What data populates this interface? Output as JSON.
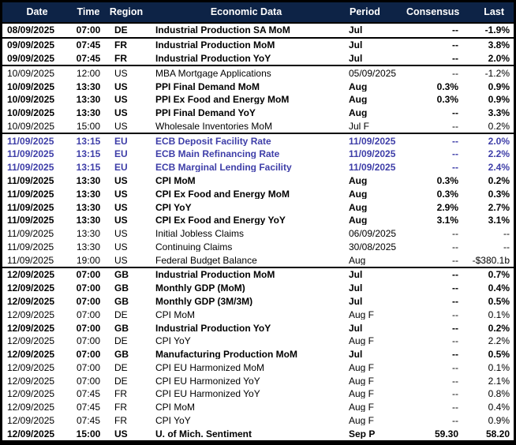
{
  "colors": {
    "header_bg": "#0d2346",
    "header_text": "#ffffff",
    "ecb_accent": "#3e3ea8",
    "border": "#000000",
    "row_bg": "#ffffff"
  },
  "columns": [
    {
      "key": "date",
      "label": "Date"
    },
    {
      "key": "time",
      "label": "Time"
    },
    {
      "key": "region",
      "label": "Region"
    },
    {
      "key": "event",
      "label": "Economic Data"
    },
    {
      "key": "period",
      "label": "Period"
    },
    {
      "key": "consensus",
      "label": "Consensus"
    },
    {
      "key": "last",
      "label": "Last"
    }
  ],
  "rows": [
    {
      "date": "08/09/2025",
      "time": "07:00",
      "region": "DE",
      "event": "Industrial Production SA MoM",
      "period": "Jul",
      "consensus": "--",
      "last": "-1.9%",
      "style": "bold",
      "group_end": true
    },
    {
      "date": "09/09/2025",
      "time": "07:45",
      "region": "FR",
      "event": "Industrial Production MoM",
      "period": "Jul",
      "consensus": "--",
      "last": "3.8%",
      "style": "bold",
      "group_end": false
    },
    {
      "date": "09/09/2025",
      "time": "07:45",
      "region": "FR",
      "event": "Industrial Production YoY",
      "period": "Jul",
      "consensus": "--",
      "last": "2.0%",
      "style": "bold",
      "group_end": true
    },
    {
      "date": "10/09/2025",
      "time": "12:00",
      "region": "US",
      "event": "MBA Mortgage Applications",
      "period": "05/09/2025",
      "consensus": "--",
      "last": "-1.2%",
      "style": "normal",
      "group_end": false
    },
    {
      "date": "10/09/2025",
      "time": "13:30",
      "region": "US",
      "event": "PPI Final Demand MoM",
      "period": "Aug",
      "consensus": "0.3%",
      "last": "0.9%",
      "style": "bold",
      "group_end": false
    },
    {
      "date": "10/09/2025",
      "time": "13:30",
      "region": "US",
      "event": "PPI Ex Food and Energy MoM",
      "period": "Aug",
      "consensus": "0.3%",
      "last": "0.9%",
      "style": "bold",
      "group_end": false
    },
    {
      "date": "10/09/2025",
      "time": "13:30",
      "region": "US",
      "event": "PPI Final Demand YoY",
      "period": "Aug",
      "consensus": "--",
      "last": "3.3%",
      "style": "bold",
      "group_end": false
    },
    {
      "date": "10/09/2025",
      "time": "15:00",
      "region": "US",
      "event": "Wholesale Inventories MoM",
      "period": "Jul F",
      "consensus": "--",
      "last": "0.2%",
      "style": "normal",
      "group_end": true
    },
    {
      "date": "11/09/2025",
      "time": "13:15",
      "region": "EU",
      "event": "ECB Deposit Facility Rate",
      "period": "11/09/2025",
      "consensus": "--",
      "last": "2.0%",
      "style": "ecb",
      "group_end": false
    },
    {
      "date": "11/09/2025",
      "time": "13:15",
      "region": "EU",
      "event": "ECB Main Refinancing Rate",
      "period": "11/09/2025",
      "consensus": "--",
      "last": "2.2%",
      "style": "ecb",
      "group_end": false
    },
    {
      "date": "11/09/2025",
      "time": "13:15",
      "region": "EU",
      "event": "ECB Marginal Lending Facility",
      "period": "11/09/2025",
      "consensus": "--",
      "last": "2.4%",
      "style": "ecb",
      "group_end": false
    },
    {
      "date": "11/09/2025",
      "time": "13:30",
      "region": "US",
      "event": "CPI MoM",
      "period": "Aug",
      "consensus": "0.3%",
      "last": "0.2%",
      "style": "bold",
      "group_end": false
    },
    {
      "date": "11/09/2025",
      "time": "13:30",
      "region": "US",
      "event": "CPI Ex Food and Energy MoM",
      "period": "Aug",
      "consensus": "0.3%",
      "last": "0.3%",
      "style": "bold",
      "group_end": false
    },
    {
      "date": "11/09/2025",
      "time": "13:30",
      "region": "US",
      "event": "CPI YoY",
      "period": "Aug",
      "consensus": "2.9%",
      "last": "2.7%",
      "style": "bold",
      "group_end": false
    },
    {
      "date": "11/09/2025",
      "time": "13:30",
      "region": "US",
      "event": "CPI Ex Food and Energy YoY",
      "period": "Aug",
      "consensus": "3.1%",
      "last": "3.1%",
      "style": "bold",
      "group_end": false
    },
    {
      "date": "11/09/2025",
      "time": "13:30",
      "region": "US",
      "event": "Initial Jobless Claims",
      "period": "06/09/2025",
      "consensus": "--",
      "last": "--",
      "style": "normal",
      "group_end": false
    },
    {
      "date": "11/09/2025",
      "time": "13:30",
      "region": "US",
      "event": "Continuing Claims",
      "period": "30/08/2025",
      "consensus": "--",
      "last": "--",
      "style": "normal",
      "group_end": false
    },
    {
      "date": "11/09/2025",
      "time": "19:00",
      "region": "US",
      "event": "Federal Budget Balance",
      "period": "Aug",
      "consensus": "--",
      "last": "-$380.1b",
      "style": "normal",
      "group_end": true
    },
    {
      "date": "12/09/2025",
      "time": "07:00",
      "region": "GB",
      "event": "Industrial Production MoM",
      "period": "Jul",
      "consensus": "--",
      "last": "0.7%",
      "style": "bold",
      "group_end": false
    },
    {
      "date": "12/09/2025",
      "time": "07:00",
      "region": "GB",
      "event": "Monthly GDP (MoM)",
      "period": "Jul",
      "consensus": "--",
      "last": "0.4%",
      "style": "bold",
      "group_end": false
    },
    {
      "date": "12/09/2025",
      "time": "07:00",
      "region": "GB",
      "event": "Monthly GDP (3M/3M)",
      "period": "Jul",
      "consensus": "--",
      "last": "0.5%",
      "style": "bold",
      "group_end": false
    },
    {
      "date": "12/09/2025",
      "time": "07:00",
      "region": "DE",
      "event": "CPI MoM",
      "period": "Aug F",
      "consensus": "--",
      "last": "0.1%",
      "style": "normal",
      "group_end": false
    },
    {
      "date": "12/09/2025",
      "time": "07:00",
      "region": "GB",
      "event": "Industrial Production YoY",
      "period": "Jul",
      "consensus": "--",
      "last": "0.2%",
      "style": "bold",
      "group_end": false
    },
    {
      "date": "12/09/2025",
      "time": "07:00",
      "region": "DE",
      "event": "CPI YoY",
      "period": "Aug F",
      "consensus": "--",
      "last": "2.2%",
      "style": "normal",
      "group_end": false
    },
    {
      "date": "12/09/2025",
      "time": "07:00",
      "region": "GB",
      "event": "Manufacturing Production MoM",
      "period": "Jul",
      "consensus": "--",
      "last": "0.5%",
      "style": "bold",
      "group_end": false
    },
    {
      "date": "12/09/2025",
      "time": "07:00",
      "region": "DE",
      "event": "CPI EU Harmonized MoM",
      "period": "Aug F",
      "consensus": "--",
      "last": "0.1%",
      "style": "normal",
      "group_end": false
    },
    {
      "date": "12/09/2025",
      "time": "07:00",
      "region": "DE",
      "event": "CPI EU Harmonized YoY",
      "period": "Aug F",
      "consensus": "--",
      "last": "2.1%",
      "style": "normal",
      "group_end": false
    },
    {
      "date": "12/09/2025",
      "time": "07:45",
      "region": "FR",
      "event": "CPI EU Harmonized YoY",
      "period": "Aug F",
      "consensus": "--",
      "last": "0.8%",
      "style": "normal",
      "group_end": false
    },
    {
      "date": "12/09/2025",
      "time": "07:45",
      "region": "FR",
      "event": "CPI MoM",
      "period": "Aug F",
      "consensus": "--",
      "last": "0.4%",
      "style": "normal",
      "group_end": false
    },
    {
      "date": "12/09/2025",
      "time": "07:45",
      "region": "FR",
      "event": "CPI YoY",
      "period": "Aug F",
      "consensus": "--",
      "last": "0.9%",
      "style": "normal",
      "group_end": false
    },
    {
      "date": "12/09/2025",
      "time": "15:00",
      "region": "US",
      "event": "U. of Mich. Sentiment",
      "period": "Sep P",
      "consensus": "59.30",
      "last": "58.20",
      "style": "bold",
      "group_end": false
    }
  ]
}
